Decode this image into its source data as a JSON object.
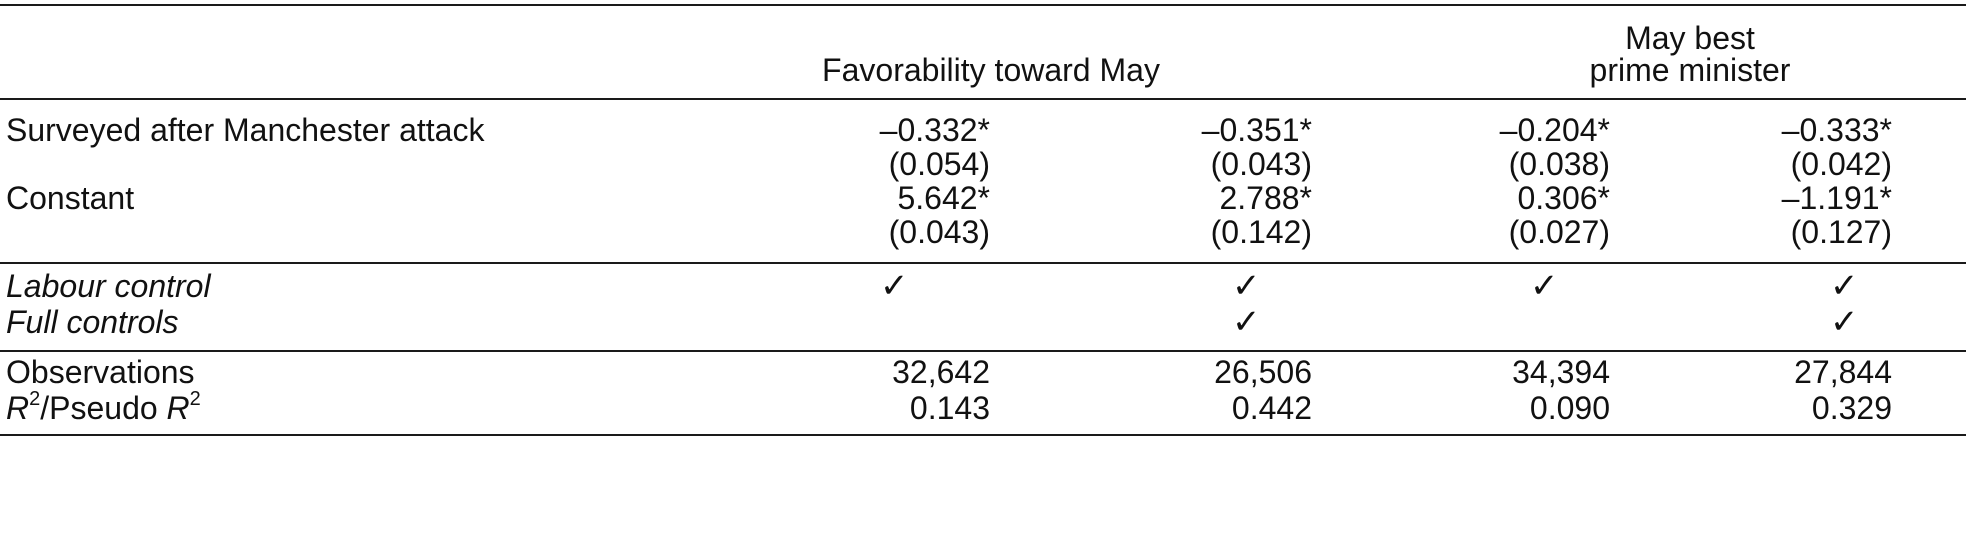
{
  "header": {
    "group1": "Favorability toward May",
    "group2_line1": "May best",
    "group2_line2": "prime minister"
  },
  "rows": {
    "surveyed": {
      "label": "Surveyed after Manchester attack",
      "coef": [
        "–0.332*",
        "–0.351*",
        "–0.204*",
        "–0.333*"
      ],
      "se": [
        "(0.054)",
        "(0.043)",
        "(0.038)",
        "(0.042)"
      ]
    },
    "constant": {
      "label": "Constant",
      "coef": [
        "5.642*",
        "2.788*",
        "0.306*",
        "–1.191*"
      ],
      "se": [
        "(0.043)",
        "(0.142)",
        "(0.027)",
        "(0.127)"
      ]
    },
    "labour_control": {
      "label": "Labour control",
      "marks": [
        "✓",
        "✓",
        "✓",
        "✓"
      ]
    },
    "full_controls": {
      "label": "Full controls",
      "marks": [
        "",
        "✓",
        "",
        "✓"
      ]
    },
    "observations": {
      "label": "Observations",
      "values": [
        "32,642",
        "26,506",
        "34,394",
        "27,844"
      ]
    },
    "r2": {
      "label_r": "R",
      "label_sup": "2",
      "label_mid": "/Pseudo ",
      "label_r2": "R",
      "label_sup2": "2",
      "values": [
        "0.143",
        "0.442",
        "0.090",
        "0.329"
      ]
    }
  }
}
